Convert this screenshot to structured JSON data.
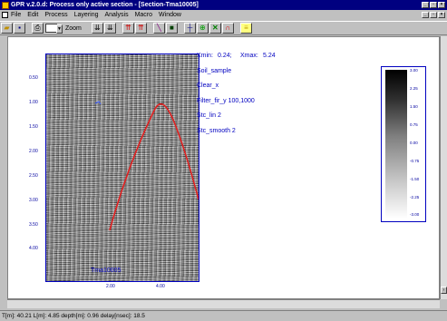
{
  "window": {
    "title": "GPR v.2.0.d: Process only active section - [Section-Tma10005]"
  },
  "menu": [
    "File",
    "Edit",
    "Process",
    "Layering",
    "Analysis",
    "Macro",
    "Window"
  ],
  "toolbar": {
    "zoom_label": "Zoom",
    "zoom_value": ""
  },
  "radargram": {
    "section_label": "Tma10005",
    "y_ticks": [
      "0.50",
      "1.00",
      "1.50",
      "2.00",
      "2.50",
      "3.00",
      "3.50",
      "4.00"
    ],
    "x_ticks": [
      "2.00",
      "4.00"
    ]
  },
  "info": {
    "xmin_label": "Xmin:",
    "xmin_value": "0.24;",
    "xmax_label": "Xmax:",
    "xmax_value": "5.24",
    "steps": [
      "Soil_sample",
      "Clear_x",
      "Filter_fir_y 100,1000",
      "Stc_lin 2",
      "Stc_smooth 2"
    ]
  },
  "colorbar": {
    "ticks": [
      "3.00",
      "2.25",
      "1.50",
      "0.75",
      "0.00",
      "-0.75",
      "-1.50",
      "-2.25",
      "-3.00"
    ]
  },
  "status": {
    "text": "T[m]: 40.21    L[m]: 4.85    depth[m]: 0.96    delay[nsec]: 18.5"
  },
  "colors": {
    "titlebar": "#000080",
    "label_blue": "#0000c0",
    "curve_red": "#e02020"
  }
}
